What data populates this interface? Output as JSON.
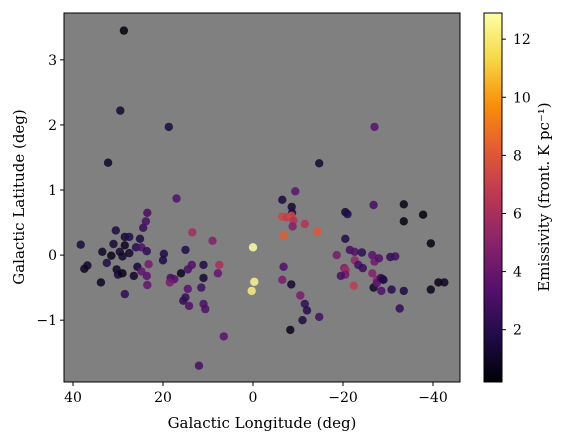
{
  "chart_data": {
    "type": "scatter",
    "title": "",
    "xlabel": "Galactic Longitude (deg)",
    "ylabel": "Galactic Latitude (deg)",
    "xlim": [
      42,
      -46
    ],
    "ylim": [
      -1.95,
      3.72
    ],
    "x_ticks": [
      40,
      20,
      0,
      -20,
      -40
    ],
    "x_tick_labels": [
      "40",
      "20",
      "0",
      "−20",
      "−40"
    ],
    "y_ticks": [
      3,
      2,
      1,
      0,
      -1
    ],
    "y_tick_labels": [
      "3",
      "2",
      "1",
      "0",
      "−1"
    ],
    "background": "#808080",
    "grid": false,
    "colormap": "inferno",
    "colorbar": {
      "label": "Emissivity (front. K pc⁻¹)",
      "range": [
        0.2,
        12.9
      ],
      "ticks": [
        2,
        4,
        6,
        8,
        10,
        12
      ],
      "tick_labels": [
        "2",
        "4",
        "6",
        "8",
        "10",
        "12"
      ]
    },
    "points": [
      {
        "x": 28.7,
        "y": 3.45,
        "v": 0.4
      },
      {
        "x": 29.5,
        "y": 2.22,
        "v": 1.3
      },
      {
        "x": 18.7,
        "y": 1.97,
        "v": 1.6
      },
      {
        "x": 32.2,
        "y": 1.42,
        "v": 1.0
      },
      {
        "x": -14.7,
        "y": 1.41,
        "v": 1.3
      },
      {
        "x": -27.0,
        "y": 1.97,
        "v": 3.5
      },
      {
        "x": 17.0,
        "y": 0.87,
        "v": 3.2
      },
      {
        "x": 23.5,
        "y": 0.65,
        "v": 3.0
      },
      {
        "x": 30.5,
        "y": 0.38,
        "v": 1.6
      },
      {
        "x": 38.3,
        "y": 0.16,
        "v": 1.5
      },
      {
        "x": 28.5,
        "y": 0.28,
        "v": 1.2
      },
      {
        "x": 33.5,
        "y": 0.05,
        "v": 1.0
      },
      {
        "x": 31.0,
        "y": 0.17,
        "v": 1.4
      },
      {
        "x": 29.6,
        "y": 0.05,
        "v": 1.2
      },
      {
        "x": 28.5,
        "y": 0.15,
        "v": 0.8
      },
      {
        "x": 29.0,
        "y": -0.02,
        "v": 1.1
      },
      {
        "x": 31.5,
        "y": -0.01,
        "v": 0.7
      },
      {
        "x": 32.5,
        "y": -0.12,
        "v": 1.8
      },
      {
        "x": 30.3,
        "y": -0.22,
        "v": 1.0
      },
      {
        "x": 30.0,
        "y": -0.3,
        "v": 1.4
      },
      {
        "x": 29.0,
        "y": -0.28,
        "v": 0.6
      },
      {
        "x": 26.5,
        "y": -0.32,
        "v": 1.0
      },
      {
        "x": 25.7,
        "y": -0.18,
        "v": 1.3
      },
      {
        "x": 27.5,
        "y": 0.28,
        "v": 1.8
      },
      {
        "x": 26.0,
        "y": 0.12,
        "v": 2.0
      },
      {
        "x": 25.1,
        "y": 0.25,
        "v": 1.6
      },
      {
        "x": 24.4,
        "y": 0.42,
        "v": 2.5
      },
      {
        "x": 23.8,
        "y": 0.52,
        "v": 3.0
      },
      {
        "x": 24.8,
        "y": 0.12,
        "v": 3.2
      },
      {
        "x": 23.6,
        "y": 0.06,
        "v": 2.2
      },
      {
        "x": 23.2,
        "y": -0.14,
        "v": 4.4
      },
      {
        "x": 23.6,
        "y": -0.32,
        "v": 3.5
      },
      {
        "x": 23.5,
        "y": -0.46,
        "v": 3.8
      },
      {
        "x": 24.8,
        "y": -0.25,
        "v": 3.8
      },
      {
        "x": 33.8,
        "y": -0.42,
        "v": 0.8
      },
      {
        "x": 37.5,
        "y": -0.21,
        "v": 0.9
      },
      {
        "x": 36.8,
        "y": -0.16,
        "v": 1.1
      },
      {
        "x": 28.5,
        "y": -0.6,
        "v": 2.2
      },
      {
        "x": 27.5,
        "y": 0.03,
        "v": 1.2
      },
      {
        "x": 20.0,
        "y": -0.08,
        "v": 1.7
      },
      {
        "x": 19.8,
        "y": 0.02,
        "v": 1.7
      },
      {
        "x": 18.3,
        "y": -0.35,
        "v": 2.8
      },
      {
        "x": 17.5,
        "y": -0.37,
        "v": 3.2
      },
      {
        "x": 16.0,
        "y": -0.28,
        "v": 0.8
      },
      {
        "x": 15.0,
        "y": 0.08,
        "v": 1.8
      },
      {
        "x": 14.5,
        "y": -0.22,
        "v": 3.0
      },
      {
        "x": 13.6,
        "y": -0.15,
        "v": 3.2
      },
      {
        "x": 18.5,
        "y": -0.42,
        "v": 4.5
      },
      {
        "x": 14.5,
        "y": -0.52,
        "v": 3.5
      },
      {
        "x": 15.0,
        "y": -0.65,
        "v": 2.5
      },
      {
        "x": 15.5,
        "y": -0.7,
        "v": 2.3
      },
      {
        "x": 14.2,
        "y": -0.78,
        "v": 3.2
      },
      {
        "x": 13.5,
        "y": 0.35,
        "v": 5.8
      },
      {
        "x": 11.0,
        "y": -0.15,
        "v": 1.8
      },
      {
        "x": 11.0,
        "y": -0.35,
        "v": 1.2
      },
      {
        "x": 11.5,
        "y": -0.5,
        "v": 2.8
      },
      {
        "x": 11.0,
        "y": -0.75,
        "v": 3.2
      },
      {
        "x": 10.6,
        "y": -0.83,
        "v": 3.2
      },
      {
        "x": 9.0,
        "y": 0.22,
        "v": 4.8
      },
      {
        "x": 7.5,
        "y": -0.15,
        "v": 6.0
      },
      {
        "x": 7.8,
        "y": -0.28,
        "v": 3.8
      },
      {
        "x": 6.5,
        "y": -1.25,
        "v": 3.6
      },
      {
        "x": 12.0,
        "y": -1.7,
        "v": 3.0
      },
      {
        "x": 0.0,
        "y": 0.12,
        "v": 12.9
      },
      {
        "x": -0.3,
        "y": -0.41,
        "v": 12.6
      },
      {
        "x": 0.3,
        "y": -0.55,
        "v": 12.2
      },
      {
        "x": -6.5,
        "y": 0.85,
        "v": 1.6
      },
      {
        "x": -8.6,
        "y": 0.74,
        "v": 1.2
      },
      {
        "x": -8.7,
        "y": 0.65,
        "v": 1.8
      },
      {
        "x": -9.4,
        "y": 0.98,
        "v": 3.6
      },
      {
        "x": -6.5,
        "y": 0.59,
        "v": 7.2
      },
      {
        "x": -7.5,
        "y": 0.58,
        "v": 6.8
      },
      {
        "x": -8.5,
        "y": 0.6,
        "v": 7.5
      },
      {
        "x": -9.0,
        "y": 0.53,
        "v": 6.3
      },
      {
        "x": -8.8,
        "y": 0.44,
        "v": 4.8
      },
      {
        "x": -11.5,
        "y": 0.48,
        "v": 6.4
      },
      {
        "x": -14.3,
        "y": 0.36,
        "v": 8.0
      },
      {
        "x": -6.8,
        "y": 0.3,
        "v": 8.2
      },
      {
        "x": -6.8,
        "y": -0.18,
        "v": 3.2
      },
      {
        "x": -6.5,
        "y": -0.38,
        "v": 4.5
      },
      {
        "x": -8.5,
        "y": -0.45,
        "v": 1.3
      },
      {
        "x": -10.5,
        "y": -0.62,
        "v": 4.5
      },
      {
        "x": -11.5,
        "y": -0.75,
        "v": 2.3
      },
      {
        "x": -12.0,
        "y": -0.85,
        "v": 2.0
      },
      {
        "x": -11.0,
        "y": -1.0,
        "v": 1.6
      },
      {
        "x": -14.7,
        "y": -0.95,
        "v": 3.0
      },
      {
        "x": -8.3,
        "y": -1.15,
        "v": 0.7
      },
      {
        "x": -20.5,
        "y": 0.66,
        "v": 1.4
      },
      {
        "x": -21.0,
        "y": 0.63,
        "v": 1.8
      },
      {
        "x": -20.5,
        "y": 0.25,
        "v": 1.8
      },
      {
        "x": -21.5,
        "y": 0.08,
        "v": 3.0
      },
      {
        "x": -22.6,
        "y": 0.05,
        "v": 3.2
      },
      {
        "x": -22.6,
        "y": -0.08,
        "v": 5.2
      },
      {
        "x": -20.3,
        "y": -0.2,
        "v": 4.5
      },
      {
        "x": -20.6,
        "y": -0.23,
        "v": 5.8
      },
      {
        "x": -23.4,
        "y": -0.15,
        "v": 2.9
      },
      {
        "x": -20.5,
        "y": -0.3,
        "v": 4.2
      },
      {
        "x": -22.4,
        "y": -0.47,
        "v": 6.8
      },
      {
        "x": -18.6,
        "y": 0.0,
        "v": 4.4
      },
      {
        "x": -19.5,
        "y": -0.32,
        "v": 3.0
      },
      {
        "x": -24.2,
        "y": 0.04,
        "v": 2.2
      },
      {
        "x": -24.4,
        "y": -0.2,
        "v": 2.5
      },
      {
        "x": -26.5,
        "y": 0.0,
        "v": 3.5
      },
      {
        "x": -27.0,
        "y": -0.1,
        "v": 4.2
      },
      {
        "x": -26.5,
        "y": -0.28,
        "v": 4.8
      },
      {
        "x": -27.5,
        "y": -0.38,
        "v": 5.2
      },
      {
        "x": -26.8,
        "y": -0.5,
        "v": 1.0
      },
      {
        "x": -27.5,
        "y": -0.43,
        "v": 3.6
      },
      {
        "x": -28.5,
        "y": -0.55,
        "v": 3.2
      },
      {
        "x": -28.4,
        "y": -0.35,
        "v": 2.5
      },
      {
        "x": -28.8,
        "y": -0.37,
        "v": 2.0
      },
      {
        "x": -29.0,
        "y": -0.38,
        "v": 1.8
      },
      {
        "x": -28.0,
        "y": -0.05,
        "v": 3.2
      },
      {
        "x": -30.5,
        "y": -0.03,
        "v": 2.4
      },
      {
        "x": -30.8,
        "y": -0.53,
        "v": 2.0
      },
      {
        "x": -33.5,
        "y": -0.55,
        "v": 1.6
      },
      {
        "x": -31.6,
        "y": -0.02,
        "v": 2.8
      },
      {
        "x": -32.6,
        "y": -0.82,
        "v": 2.3
      },
      {
        "x": -26.8,
        "y": 0.77,
        "v": 3.0
      },
      {
        "x": -33.5,
        "y": 0.78,
        "v": 0.6
      },
      {
        "x": -33.5,
        "y": 0.52,
        "v": 0.5
      },
      {
        "x": -37.8,
        "y": 0.62,
        "v": 0.5
      },
      {
        "x": -39.5,
        "y": 0.18,
        "v": 0.5
      },
      {
        "x": -39.5,
        "y": -0.53,
        "v": 0.8
      },
      {
        "x": -41.2,
        "y": -0.42,
        "v": 0.7
      },
      {
        "x": -42.5,
        "y": -0.42,
        "v": 0.9
      }
    ]
  }
}
